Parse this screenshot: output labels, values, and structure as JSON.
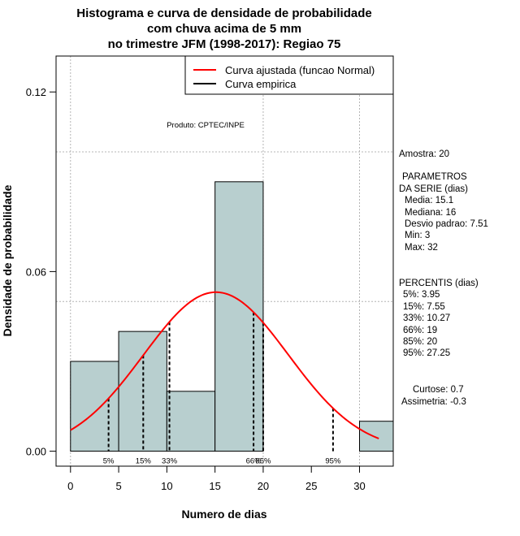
{
  "chart_data": {
    "type": "histogram",
    "title_lines": [
      "Histograma e curva de densidade de probabilidade",
      "com chuva acima de 5 mm",
      "no trimestre JFM (1998-2017): Regiao 75"
    ],
    "xlabel": "Numero de dias",
    "ylabel": "Densidade de probabilidade",
    "xlim": [
      -1.5,
      33.5
    ],
    "ylim": [
      -0.005,
      0.132
    ],
    "x_ticks": [
      0,
      5,
      10,
      15,
      20,
      25,
      30
    ],
    "y_ticks": [
      0.0,
      0.06,
      0.12
    ],
    "y_tick_labels": [
      "0.00",
      "0.06",
      "0.12"
    ],
    "bin_edges": [
      0,
      5,
      10,
      15,
      20,
      25,
      30,
      33.5
    ],
    "densities": [
      0.03,
      0.04,
      0.02,
      0.09,
      0.0,
      0.0,
      0.01
    ],
    "bar_color": "#b8cfcf",
    "normal_fit": {
      "mean": 15.1,
      "sd": 7.51,
      "x_range": [
        0,
        32
      ],
      "color": "#ff0000"
    },
    "grid": {
      "x": [
        0,
        20,
        30
      ],
      "y": [
        0.05,
        0.1
      ],
      "color": "#b4b4b4"
    },
    "legend": [
      {
        "label": "Curva ajustada (funcao Normal)",
        "color": "#ff0000"
      },
      {
        "label": "Curva empirica",
        "color": "#000000"
      }
    ],
    "percentiles": [
      {
        "label": "5%",
        "value": 3.95
      },
      {
        "label": "15%",
        "value": 7.55
      },
      {
        "label": "33%",
        "value": 10.27
      },
      {
        "label": "66%",
        "value": 19
      },
      {
        "label": "85%",
        "value": 20
      },
      {
        "label": "95%",
        "value": 27.25
      }
    ],
    "credit": "Produto: CPTEC/INPE"
  },
  "stats_panel": {
    "amostra": "Amostra: 20",
    "params_title": "PARAMETROS",
    "params_subtitle": "DA SERIE (dias)",
    "params": [
      "Media: 15.1",
      "Mediana: 16",
      "Desvio padrao: 7.51",
      "Min: 3",
      "Max: 32"
    ],
    "percentis_title": "PERCENTIS (dias)",
    "percentis": [
      "5%: 3.95",
      "15%: 7.55",
      "33%: 10.27",
      "66%: 19",
      "85%: 20",
      "95%: 27.25"
    ],
    "curtose": "Curtose: 0.7",
    "assimetria": "Assimetria: -0.3"
  }
}
